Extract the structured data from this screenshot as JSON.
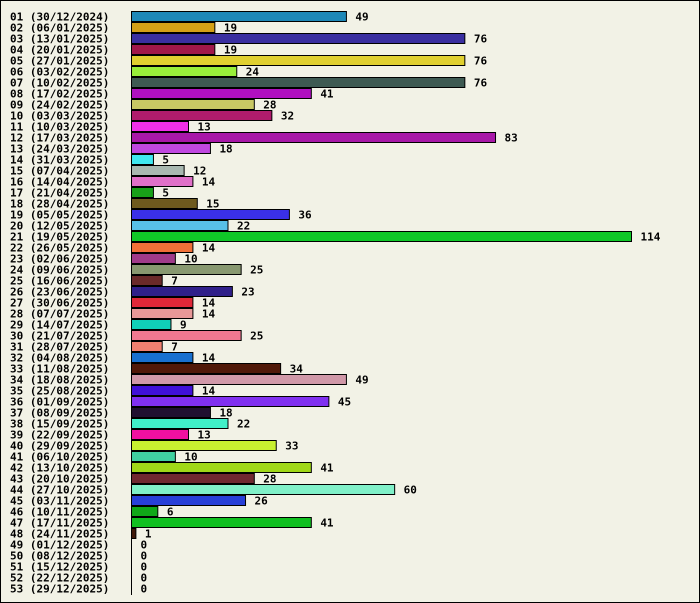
{
  "chart_data": {
    "type": "bar",
    "orientation": "horizontal",
    "title": "",
    "xlabel": "",
    "ylabel": "",
    "grid": false,
    "legend": "none",
    "xlim": [
      0,
      114
    ],
    "categories": [
      "01 (30/12/2024)",
      "02 (06/01/2025)",
      "03 (13/01/2025)",
      "04 (20/01/2025)",
      "05 (27/01/2025)",
      "06 (03/02/2025)",
      "07 (10/02/2025)",
      "08 (17/02/2025)",
      "09 (24/02/2025)",
      "10 (03/03/2025)",
      "11 (10/03/2025)",
      "12 (17/03/2025)",
      "13 (24/03/2025)",
      "14 (31/03/2025)",
      "15 (07/04/2025)",
      "16 (14/04/2025)",
      "17 (21/04/2025)",
      "18 (28/04/2025)",
      "19 (05/05/2025)",
      "20 (12/05/2025)",
      "21 (19/05/2025)",
      "22 (26/05/2025)",
      "23 (02/06/2025)",
      "24 (09/06/2025)",
      "25 (16/06/2025)",
      "26 (23/06/2025)",
      "27 (30/06/2025)",
      "28 (07/07/2025)",
      "29 (14/07/2025)",
      "30 (21/07/2025)",
      "31 (28/07/2025)",
      "32 (04/08/2025)",
      "33 (11/08/2025)",
      "34 (18/08/2025)",
      "35 (25/08/2025)",
      "36 (01/09/2025)",
      "37 (08/09/2025)",
      "38 (15/09/2025)",
      "39 (22/09/2025)",
      "40 (29/09/2025)",
      "41 (06/10/2025)",
      "42 (13/10/2025)",
      "43 (20/10/2025)",
      "44 (27/10/2025)",
      "45 (03/11/2025)",
      "46 (10/11/2025)",
      "47 (17/11/2025)",
      "48 (24/11/2025)",
      "49 (01/12/2025)",
      "50 (08/12/2025)",
      "51 (15/12/2025)",
      "52 (22/12/2025)",
      "53 (29/12/2025)"
    ],
    "values": [
      49,
      19,
      76,
      19,
      76,
      24,
      76,
      41,
      28,
      32,
      13,
      83,
      18,
      5,
      12,
      14,
      5,
      15,
      36,
      22,
      114,
      14,
      10,
      25,
      7,
      23,
      14,
      14,
      9,
      25,
      7,
      14,
      34,
      49,
      14,
      45,
      18,
      22,
      13,
      33,
      10,
      41,
      28,
      60,
      26,
      6,
      41,
      1,
      0,
      0,
      0,
      0,
      0
    ],
    "colors": [
      "#1e88b8",
      "#d4a017",
      "#3a2fa0",
      "#a0184a",
      "#e0d030",
      "#98ee3a",
      "#3e5a52",
      "#b010c0",
      "#c8c864",
      "#b01c6c",
      "#f030e8",
      "#a818a8",
      "#c048e0",
      "#40e8f0",
      "#a8b8b0",
      "#e070c8",
      "#18a018",
      "#6e5a1e",
      "#3a30e8",
      "#58c0e8",
      "#10c828",
      "#f07038",
      "#a03a8a",
      "#889870",
      "#6a2a2a",
      "#30208a",
      "#e02838",
      "#e89898",
      "#10d0b8",
      "#f07890",
      "#f08070",
      "#1870d0",
      "#501808",
      "#d098a8",
      "#4010d8",
      "#8030f0",
      "#201030",
      "#40f0c8",
      "#f010a0",
      "#c8f030",
      "#40d0a0",
      "#a0d818",
      "#702830",
      "#80f0c8",
      "#2840d8",
      "#10a818",
      "#10c020",
      "#401808",
      "#b0b0b0",
      "#b0b0b0",
      "#b0b0b0",
      "#b0b0b0",
      "#b0b0b0"
    ]
  }
}
